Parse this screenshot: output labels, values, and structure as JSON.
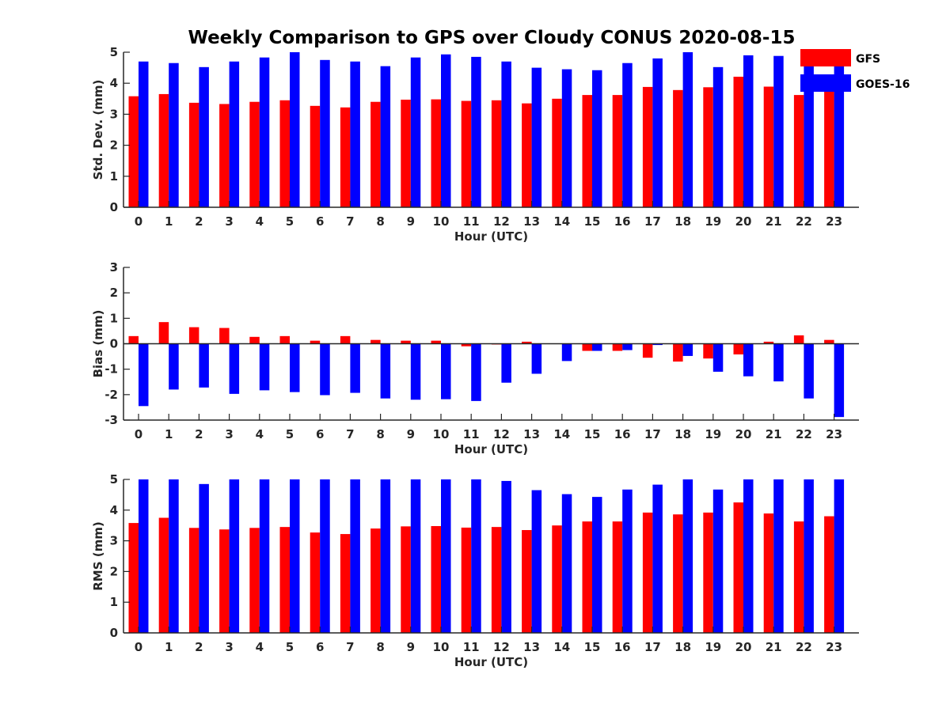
{
  "title": "Weekly Comparison to GPS over Cloudy CONUS 2020-08-15",
  "colors": {
    "GFS": "#ff0000",
    "GOES-16": "#0000ff",
    "axis": "#262626"
  },
  "chart_data": [
    {
      "type": "bar",
      "categories": [
        "0",
        "1",
        "2",
        "3",
        "4",
        "5",
        "6",
        "7",
        "8",
        "9",
        "10",
        "11",
        "12",
        "13",
        "14",
        "15",
        "16",
        "17",
        "18",
        "19",
        "20",
        "21",
        "22",
        "23"
      ],
      "xlabel": "Hour (UTC)",
      "ylabel": "Std. Dev. (mm)",
      "ylim": [
        0,
        5
      ],
      "yticks": [
        0,
        1,
        2,
        3,
        4,
        5
      ],
      "legend": "top-right",
      "series": [
        {
          "name": "GFS",
          "color": "#ff0000",
          "values": [
            3.58,
            3.65,
            3.37,
            3.33,
            3.4,
            3.45,
            3.27,
            3.22,
            3.4,
            3.47,
            3.48,
            3.43,
            3.45,
            3.35,
            3.5,
            3.62,
            3.62,
            3.88,
            3.78,
            3.87,
            4.21,
            3.89,
            3.62,
            3.8
          ]
        },
        {
          "name": "GOES-16",
          "color": "#0000ff",
          "values": [
            4.7,
            4.65,
            4.52,
            4.7,
            4.83,
            5.0,
            4.75,
            4.7,
            4.55,
            4.83,
            4.93,
            4.85,
            4.7,
            4.5,
            4.45,
            4.42,
            4.65,
            4.8,
            5.0,
            4.52,
            4.9,
            4.88,
            4.65,
            4.65
          ]
        }
      ]
    },
    {
      "type": "bar",
      "categories": [
        "0",
        "1",
        "2",
        "3",
        "4",
        "5",
        "6",
        "7",
        "8",
        "9",
        "10",
        "11",
        "12",
        "13",
        "14",
        "15",
        "16",
        "17",
        "18",
        "19",
        "20",
        "21",
        "22",
        "23"
      ],
      "xlabel": "Hour (UTC)",
      "ylabel": "Bias (mm)",
      "ylim": [
        -3,
        3
      ],
      "yticks": [
        -3,
        -2,
        -1,
        0,
        1,
        2,
        3
      ],
      "series": [
        {
          "name": "GFS",
          "color": "#ff0000",
          "values": [
            0.3,
            0.85,
            0.65,
            0.62,
            0.27,
            0.3,
            0.12,
            0.3,
            0.15,
            0.12,
            0.12,
            -0.1,
            -0.03,
            0.08,
            0.0,
            -0.28,
            -0.28,
            -0.55,
            -0.7,
            -0.58,
            -0.42,
            0.08,
            0.33,
            0.15
          ]
        },
        {
          "name": "GOES-16",
          "color": "#0000ff",
          "values": [
            -2.45,
            -1.8,
            -1.72,
            -1.97,
            -1.83,
            -1.9,
            -2.02,
            -1.93,
            -2.15,
            -2.2,
            -2.18,
            -2.25,
            -1.53,
            -1.18,
            -0.68,
            -0.28,
            -0.25,
            -0.05,
            -0.48,
            -1.1,
            -1.28,
            -1.48,
            -2.15,
            -2.88
          ]
        }
      ]
    },
    {
      "type": "bar",
      "categories": [
        "0",
        "1",
        "2",
        "3",
        "4",
        "5",
        "6",
        "7",
        "8",
        "9",
        "10",
        "11",
        "12",
        "13",
        "14",
        "15",
        "16",
        "17",
        "18",
        "19",
        "20",
        "21",
        "22",
        "23"
      ],
      "xlabel": "Hour (UTC)",
      "ylabel": "RMS (mm)",
      "ylim": [
        0,
        5
      ],
      "yticks": [
        0,
        1,
        2,
        3,
        4,
        5
      ],
      "series": [
        {
          "name": "GFS",
          "color": "#ff0000",
          "values": [
            3.58,
            3.75,
            3.42,
            3.37,
            3.42,
            3.45,
            3.27,
            3.22,
            3.4,
            3.47,
            3.48,
            3.43,
            3.45,
            3.35,
            3.5,
            3.63,
            3.63,
            3.92,
            3.86,
            3.92,
            4.25,
            3.89,
            3.63,
            3.8
          ]
        },
        {
          "name": "GOES-16",
          "color": "#0000ff",
          "values": [
            5.0,
            5.0,
            4.85,
            5.0,
            5.0,
            5.0,
            5.0,
            5.0,
            5.0,
            5.0,
            5.0,
            5.0,
            4.95,
            4.65,
            4.52,
            4.43,
            4.67,
            4.83,
            5.0,
            4.67,
            5.0,
            5.0,
            5.0,
            5.0
          ]
        }
      ]
    }
  ]
}
